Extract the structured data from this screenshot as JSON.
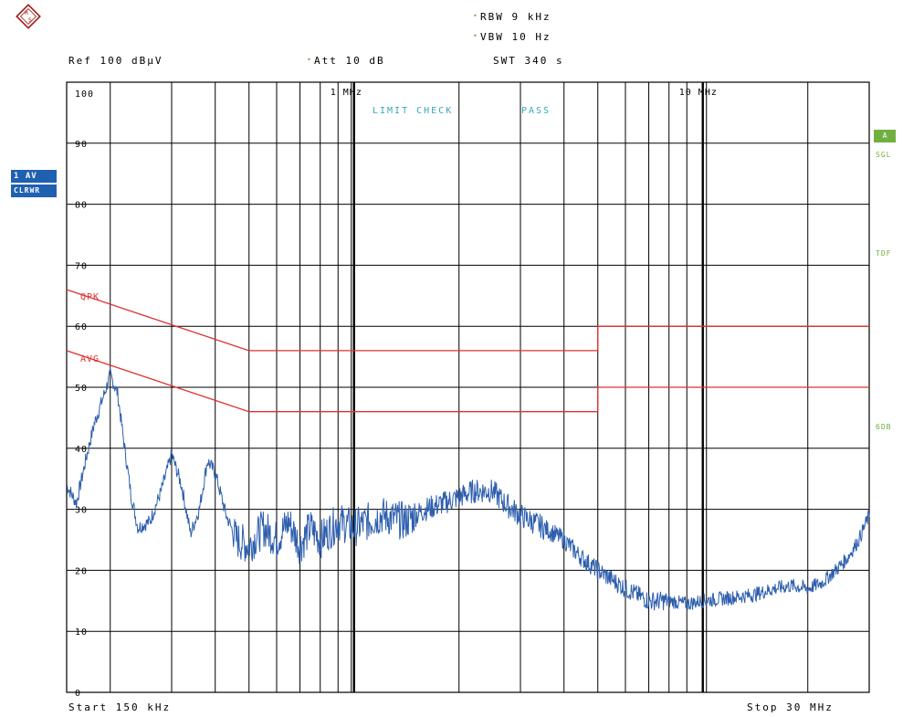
{
  "header": {
    "rbw": "RBW  9 kHz",
    "vbw": "VBW  10 Hz",
    "swt": "SWT  340 s",
    "ref": "Ref  100 dBµV",
    "att": "Att  10 dB"
  },
  "footer": {
    "start": "Start  150 kHz",
    "stop": "Stop  30 MHz"
  },
  "badges": {
    "trace": "1 AV",
    "mode": "CLRWR",
    "right": "A"
  },
  "side_labels": {
    "sgl": "SGL",
    "tdf": "TDF",
    "db6": "6DB"
  },
  "limit_check": {
    "label": "LIMIT CHECK",
    "result": "PASS"
  },
  "limit_labels": {
    "qpk": "QPK",
    "avg": "AVG"
  },
  "colors": {
    "grid": "#000000",
    "trace": "#2e5fae",
    "limit": "#e03030",
    "pass_text": "#38a8b8",
    "side_green": "#70b040",
    "badge_blue": "#2060b0"
  },
  "chart_data": {
    "type": "line",
    "x_scale": "log",
    "xlim_hz": [
      150000,
      30000000
    ],
    "ylim": [
      0,
      100
    ],
    "ylabel": "dBµV",
    "y_ticks": [
      0,
      10,
      20,
      30,
      40,
      50,
      60,
      70,
      80,
      90,
      100
    ],
    "y_tick_labels": [
      "0",
      "10",
      "20",
      "30",
      "40",
      "50",
      "60",
      "70",
      "80",
      "90",
      "100"
    ],
    "x_tick_labels": [
      {
        "hz": 1000000,
        "label": "1 MHz"
      },
      {
        "hz": 10000000,
        "label": "10 MHz"
      }
    ],
    "grid": true,
    "limit_lines": [
      {
        "name": "QPK",
        "points": [
          [
            150000,
            66
          ],
          [
            500000,
            56
          ],
          [
            5000000,
            56
          ],
          [
            5000000,
            60
          ],
          [
            30000000,
            60
          ]
        ]
      },
      {
        "name": "AVG",
        "points": [
          [
            150000,
            56
          ],
          [
            500000,
            46
          ],
          [
            5000000,
            46
          ],
          [
            5000000,
            50
          ],
          [
            30000000,
            50
          ]
        ]
      }
    ],
    "series": [
      {
        "values_hz_dbuv": [
          [
            150000,
            34
          ],
          [
            160000,
            31
          ],
          [
            170000,
            38
          ],
          [
            180000,
            44
          ],
          [
            190000,
            48
          ],
          [
            200000,
            52
          ],
          [
            210000,
            49
          ],
          [
            220000,
            40
          ],
          [
            230000,
            32
          ],
          [
            240000,
            27
          ],
          [
            260000,
            28
          ],
          [
            280000,
            33
          ],
          [
            300000,
            39
          ],
          [
            320000,
            34
          ],
          [
            340000,
            26
          ],
          [
            360000,
            30
          ],
          [
            380000,
            38
          ],
          [
            400000,
            36
          ],
          [
            430000,
            29
          ],
          [
            460000,
            25
          ],
          [
            500000,
            24
          ],
          [
            550000,
            27
          ],
          [
            600000,
            25
          ],
          [
            650000,
            28
          ],
          [
            700000,
            24
          ],
          [
            750000,
            27
          ],
          [
            800000,
            25
          ],
          [
            900000,
            28
          ],
          [
            1000000,
            27
          ],
          [
            1100000,
            28
          ],
          [
            1200000,
            29
          ],
          [
            1400000,
            28
          ],
          [
            1600000,
            30
          ],
          [
            1800000,
            31
          ],
          [
            2000000,
            32
          ],
          [
            2200000,
            33
          ],
          [
            2500000,
            33
          ],
          [
            2700000,
            31
          ],
          [
            3000000,
            29
          ],
          [
            3500000,
            27
          ],
          [
            4000000,
            25
          ],
          [
            4500000,
            22
          ],
          [
            5000000,
            20
          ],
          [
            6000000,
            17
          ],
          [
            7000000,
            15
          ],
          [
            8000000,
            15
          ],
          [
            9000000,
            14.5
          ],
          [
            10000000,
            15
          ],
          [
            12000000,
            15.5
          ],
          [
            14000000,
            16
          ],
          [
            16000000,
            17
          ],
          [
            18000000,
            17.5
          ],
          [
            20000000,
            17
          ],
          [
            22000000,
            18
          ],
          [
            24000000,
            20
          ],
          [
            26000000,
            22
          ],
          [
            28000000,
            25
          ],
          [
            30000000,
            29
          ]
        ]
      }
    ]
  }
}
